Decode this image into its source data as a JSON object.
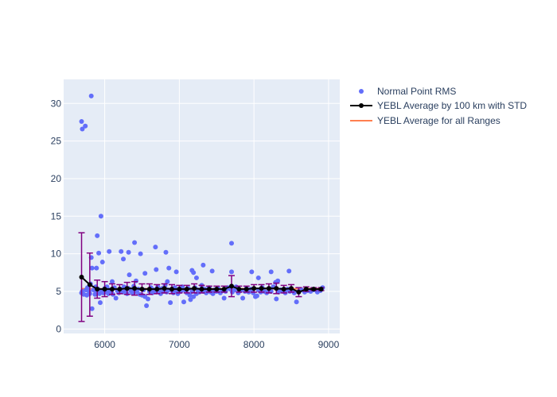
{
  "chart_data": {
    "type": "scatter",
    "title": "",
    "xlabel": "",
    "ylabel": "",
    "xlim": [
      5450,
      9150
    ],
    "ylim": [
      -0.6,
      33.2
    ],
    "x_ticks": [
      6000,
      7000,
      8000,
      9000
    ],
    "x_tick_labels": [
      "6000",
      "7000",
      "8000",
      "9000"
    ],
    "y_ticks": [
      0,
      5,
      10,
      15,
      20,
      25,
      30
    ],
    "y_tick_labels": [
      "0",
      "5",
      "10",
      "15",
      "20",
      "25",
      "30"
    ],
    "grid": true,
    "legend_position": "top-right",
    "colors": {
      "plot_background": "#e5ecf6",
      "grid": "#ffffff",
      "points": "#636efa",
      "average_line": "#000000",
      "error_bars": "#800080",
      "overall_line": "#ff7f50"
    },
    "legend": [
      {
        "label": "Normal Point RMS",
        "symbol": "marker"
      },
      {
        "label": "YEBL Average by 100 km with STD",
        "symbol": "line-marker"
      },
      {
        "label": "YEBL Average for all Ranges",
        "symbol": "line"
      }
    ],
    "series": [
      {
        "name": "Normal Point RMS",
        "mode": "markers",
        "points": [
          [
            5690,
            27.6
          ],
          [
            5700,
            26.6
          ],
          [
            5740,
            27.0
          ],
          [
            5820,
            31.0
          ],
          [
            5950,
            15.0
          ],
          [
            5900,
            12.4
          ],
          [
            6400,
            11.5
          ],
          [
            7700,
            11.4
          ],
          [
            6680,
            10.9
          ],
          [
            5920,
            10.1
          ],
          [
            6060,
            10.3
          ],
          [
            6220,
            10.3
          ],
          [
            6320,
            10.2
          ],
          [
            6480,
            10.0
          ],
          [
            6820,
            10.2
          ],
          [
            5820,
            9.5
          ],
          [
            6250,
            9.3
          ],
          [
            5970,
            8.9
          ],
          [
            5830,
            8.1
          ],
          [
            5890,
            8.1
          ],
          [
            6860,
            8.1
          ],
          [
            7320,
            8.5
          ],
          [
            6690,
            7.9
          ],
          [
            6540,
            7.4
          ],
          [
            6330,
            7.2
          ],
          [
            6960,
            7.6
          ],
          [
            7170,
            7.8
          ],
          [
            7190,
            7.5
          ],
          [
            7440,
            7.7
          ],
          [
            7700,
            7.6
          ],
          [
            7970,
            7.6
          ],
          [
            8230,
            7.6
          ],
          [
            8470,
            7.7
          ],
          [
            7230,
            6.8
          ],
          [
            8060,
            6.8
          ],
          [
            8320,
            6.4
          ],
          [
            8290,
            6.2
          ],
          [
            6100,
            6.3
          ],
          [
            6420,
            6.4
          ],
          [
            6840,
            6.3
          ],
          [
            5810,
            6.0
          ],
          [
            5700,
            5.0
          ],
          [
            5690,
            4.8
          ],
          [
            5720,
            4.6
          ],
          [
            5750,
            5.2
          ],
          [
            5760,
            4.5
          ],
          [
            5770,
            5.5
          ],
          [
            5790,
            5.0
          ],
          [
            5800,
            4.7
          ],
          [
            5830,
            2.7
          ],
          [
            5850,
            5.2
          ],
          [
            5870,
            4.6
          ],
          [
            5880,
            5.6
          ],
          [
            5890,
            4.9
          ],
          [
            5910,
            5.3
          ],
          [
            5930,
            4.7
          ],
          [
            5940,
            3.5
          ],
          [
            5960,
            5.1
          ],
          [
            5980,
            4.8
          ],
          [
            6000,
            5.4
          ],
          [
            6020,
            4.9
          ],
          [
            6030,
            5.6
          ],
          [
            6050,
            4.7
          ],
          [
            6070,
            5.2
          ],
          [
            6090,
            5.0
          ],
          [
            6110,
            4.6
          ],
          [
            6130,
            5.5
          ],
          [
            6150,
            4.1
          ],
          [
            6170,
            5.1
          ],
          [
            6190,
            4.8
          ],
          [
            6210,
            5.3
          ],
          [
            6240,
            4.9
          ],
          [
            6260,
            5.6
          ],
          [
            6280,
            5.0
          ],
          [
            6300,
            4.7
          ],
          [
            6320,
            5.4
          ],
          [
            6350,
            5.1
          ],
          [
            6370,
            4.8
          ],
          [
            6390,
            5.7
          ],
          [
            6410,
            5.0
          ],
          [
            6430,
            4.9
          ],
          [
            6450,
            5.3
          ],
          [
            6470,
            4.6
          ],
          [
            6500,
            4.5
          ],
          [
            6520,
            5.2
          ],
          [
            6540,
            4.3
          ],
          [
            6560,
            3.1
          ],
          [
            6580,
            4.0
          ],
          [
            6600,
            5.0
          ],
          [
            6620,
            5.5
          ],
          [
            6640,
            4.8
          ],
          [
            6660,
            5.2
          ],
          [
            6690,
            4.9
          ],
          [
            6710,
            5.6
          ],
          [
            6730,
            5.1
          ],
          [
            6750,
            4.7
          ],
          [
            6770,
            5.4
          ],
          [
            6790,
            5.0
          ],
          [
            6810,
            5.8
          ],
          [
            6830,
            4.9
          ],
          [
            6850,
            5.2
          ],
          [
            6880,
            3.5
          ],
          [
            6900,
            5.1
          ],
          [
            6920,
            4.8
          ],
          [
            6940,
            5.5
          ],
          [
            6960,
            5.0
          ],
          [
            6980,
            4.7
          ],
          [
            7000,
            5.3
          ],
          [
            7020,
            5.0
          ],
          [
            7040,
            5.6
          ],
          [
            7060,
            3.6
          ],
          [
            7080,
            5.1
          ],
          [
            7100,
            4.8
          ],
          [
            7120,
            5.4
          ],
          [
            7140,
            4.5
          ],
          [
            7150,
            3.9
          ],
          [
            7170,
            5.0
          ],
          [
            7190,
            4.3
          ],
          [
            7210,
            5.5
          ],
          [
            7230,
            4.7
          ],
          [
            7250,
            5.2
          ],
          [
            7270,
            4.9
          ],
          [
            7300,
            5.8
          ],
          [
            7320,
            5.0
          ],
          [
            7340,
            5.3
          ],
          [
            7360,
            4.8
          ],
          [
            7380,
            5.1
          ],
          [
            7400,
            5.5
          ],
          [
            7420,
            4.9
          ],
          [
            7450,
            4.7
          ],
          [
            7470,
            5.2
          ],
          [
            7500,
            5.0
          ],
          [
            7520,
            5.4
          ],
          [
            7550,
            4.8
          ],
          [
            7580,
            5.1
          ],
          [
            7600,
            4.1
          ],
          [
            7620,
            5.0
          ],
          [
            7650,
            5.5
          ],
          [
            7680,
            5.3
          ],
          [
            7710,
            4.9
          ],
          [
            7740,
            5.2
          ],
          [
            7760,
            5.6
          ],
          [
            7790,
            4.8
          ],
          [
            7820,
            5.1
          ],
          [
            7850,
            4.1
          ],
          [
            7880,
            5.0
          ],
          [
            7900,
            5.4
          ],
          [
            7930,
            4.9
          ],
          [
            7960,
            5.3
          ],
          [
            7990,
            4.8
          ],
          [
            8020,
            4.3
          ],
          [
            8040,
            4.4
          ],
          [
            8060,
            5.2
          ],
          [
            8090,
            4.9
          ],
          [
            8110,
            5.5
          ],
          [
            8140,
            5.0
          ],
          [
            8170,
            4.8
          ],
          [
            8200,
            5.3
          ],
          [
            8230,
            5.0
          ],
          [
            8260,
            5.6
          ],
          [
            8300,
            4.0
          ],
          [
            8330,
            4.9
          ],
          [
            8360,
            5.2
          ],
          [
            8390,
            5.0
          ],
          [
            8420,
            4.8
          ],
          [
            8450,
            5.3
          ],
          [
            8480,
            5.0
          ],
          [
            8510,
            5.1
          ],
          [
            8540,
            4.8
          ],
          [
            8570,
            3.6
          ],
          [
            8600,
            5.0
          ],
          [
            8640,
            5.2
          ],
          [
            8680,
            4.9
          ],
          [
            8720,
            5.1
          ],
          [
            8760,
            5.0
          ],
          [
            8800,
            5.2
          ],
          [
            8850,
            4.9
          ],
          [
            8890,
            5.1
          ],
          [
            8920,
            5.5
          ]
        ]
      },
      {
        "name": "YEBL Average by 100 km with STD",
        "mode": "lines+markers+error",
        "x": [
          5690,
          5800,
          5900,
          6000,
          6100,
          6200,
          6300,
          6400,
          6500,
          6600,
          6700,
          6800,
          6900,
          7000,
          7100,
          7200,
          7300,
          7400,
          7500,
          7600,
          7700,
          7800,
          7900,
          8000,
          8100,
          8200,
          8300,
          8400,
          8500,
          8600,
          8700,
          8800,
          8900
        ],
        "y": [
          6.9,
          5.9,
          5.3,
          5.3,
          5.3,
          5.3,
          5.4,
          5.4,
          5.3,
          5.3,
          5.3,
          5.4,
          5.3,
          5.3,
          5.3,
          5.4,
          5.3,
          5.3,
          5.3,
          5.3,
          5.7,
          5.3,
          5.3,
          5.4,
          5.4,
          5.4,
          5.4,
          5.3,
          5.4,
          4.9,
          5.3,
          5.3,
          5.3
        ],
        "std": [
          5.9,
          4.2,
          1.2,
          1.0,
          0.7,
          0.6,
          0.8,
          0.9,
          0.7,
          0.7,
          0.6,
          0.6,
          0.6,
          0.5,
          0.5,
          0.6,
          0.5,
          0.4,
          0.4,
          0.4,
          1.4,
          0.4,
          0.4,
          0.5,
          0.5,
          0.6,
          0.7,
          0.5,
          0.5,
          0.6,
          0.3,
          0.2,
          0.2
        ]
      },
      {
        "name": "YEBL Average for all Ranges",
        "mode": "lines",
        "x": [
          5690,
          8900
        ],
        "y": [
          5.35,
          5.35
        ]
      }
    ]
  }
}
